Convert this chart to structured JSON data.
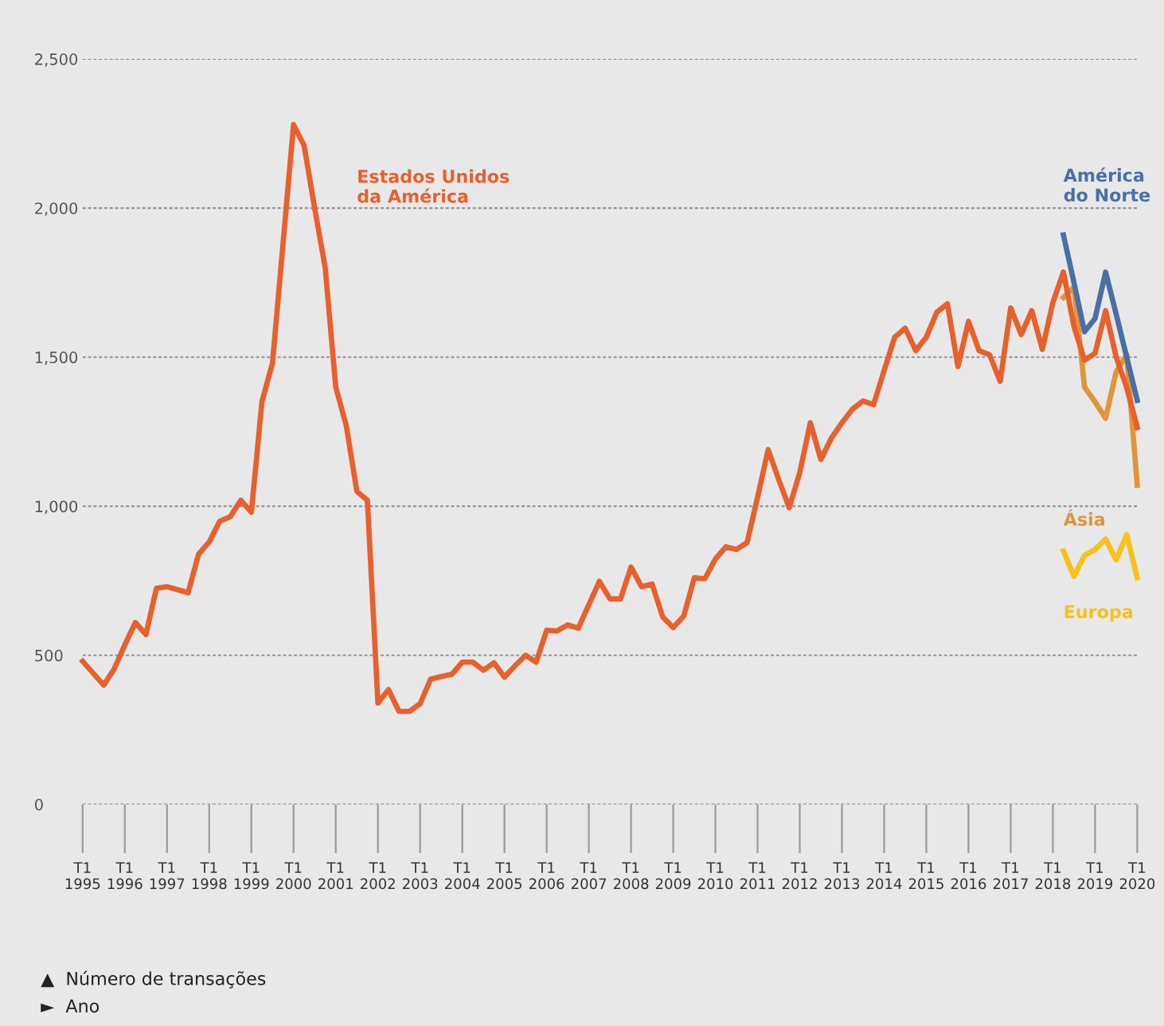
{
  "chart_data": {
    "type": "line",
    "categories": [
      "T1\n1995",
      null,
      null,
      null,
      "T1\n1996",
      null,
      null,
      null,
      "T1\n1997",
      null,
      null,
      null,
      "T1\n1998",
      null,
      null,
      null,
      "T1\n1999",
      null,
      null,
      null,
      "T1\n2000",
      null,
      null,
      null,
      "T1\n2001",
      null,
      null,
      null,
      "T1\n2002",
      null,
      null,
      null,
      "T1\n2003",
      null,
      null,
      null,
      "T1\n2004",
      null,
      null,
      null,
      "T1\n2005",
      null,
      null,
      null,
      "T1\n2006",
      null,
      null,
      null,
      "T1\n2007",
      null,
      null,
      null,
      "T1\n2008",
      null,
      null,
      null,
      "T1\n2009",
      null,
      null,
      null,
      "T1\n2010",
      null,
      null,
      null,
      "T1\n2011",
      null,
      null,
      null,
      "T1\n2012",
      null,
      null,
      null,
      "T1\n2013",
      null,
      null,
      null,
      "T1\n2014",
      null,
      null,
      null,
      "T1\n2015",
      null,
      null,
      null,
      "T1\n2016",
      null,
      null,
      null,
      "T1\n2017",
      null,
      null,
      null,
      "T1\n2018",
      null,
      null,
      null,
      "T1\n2019",
      null,
      null,
      null,
      "T1\n2020"
    ],
    "ylim": [
      0,
      2500
    ],
    "yticks": [
      0,
      500,
      {
        "value": 1000,
        "label": "1,000"
      },
      {
        "value": 1500,
        "label": "1,500"
      },
      {
        "value": 2000,
        "label": "2,000"
      },
      {
        "value": 2500,
        "label": "2,500"
      }
    ],
    "grid": "y",
    "legend": false,
    "marker": "none",
    "line_style": "solid",
    "series": [
      {
        "name": "Estados Unidos\nda América",
        "color": "#e8602c",
        "values": [
          480,
          440,
          400,
          455,
          535,
          610,
          570,
          725,
          730,
          720,
          710,
          840,
          880,
          950,
          965,
          1020,
          980,
          1350,
          1480,
          1880,
          2280,
          2210,
          2000,
          1800,
          1400,
          1270,
          1050,
          1020,
          340,
          385,
          312,
          312,
          338,
          420,
          429,
          436,
          477,
          477,
          450,
          475,
          427,
          465,
          500,
          477,
          584,
          582,
          602,
          591,
          670,
          748,
          689,
          689,
          796,
          730,
          739,
          629,
          593,
          632,
          760,
          757,
          823,
          864,
          855,
          878,
          1030,
          1190,
          1090,
          995,
          1113,
          1280,
          1157,
          1229,
          1280,
          1326,
          1353,
          1341,
          1455,
          1567,
          1597,
          1522,
          1567,
          1651,
          1679,
          1469,
          1620,
          1522,
          1508,
          1419,
          1665,
          1576,
          1656,
          1526,
          1683,
          1786,
          1603,
          1490,
          1513,
          1656,
          1501,
          1398,
          1264
        ]
      },
      {
        "name": "América\ndo Norte",
        "color": "#4a6fa5",
        "values": [
          null,
          null,
          null,
          null,
          null,
          null,
          null,
          null,
          null,
          null,
          null,
          null,
          null,
          null,
          null,
          null,
          null,
          null,
          null,
          null,
          null,
          null,
          null,
          null,
          null,
          null,
          null,
          null,
          null,
          null,
          null,
          null,
          null,
          null,
          null,
          null,
          null,
          null,
          null,
          null,
          null,
          null,
          null,
          null,
          null,
          null,
          null,
          null,
          null,
          null,
          null,
          null,
          null,
          null,
          null,
          null,
          null,
          null,
          null,
          null,
          null,
          null,
          null,
          null,
          null,
          null,
          null,
          null,
          null,
          null,
          null,
          null,
          null,
          null,
          null,
          null,
          null,
          null,
          null,
          null,
          null,
          null,
          null,
          null,
          null,
          null,
          null,
          null,
          null,
          null,
          null,
          null,
          null,
          1910,
          1750,
          1585,
          1630,
          1785,
          1645,
          1500,
          1355
        ]
      },
      {
        "name": "Ásia",
        "color": "#e0953a",
        "values": [
          null,
          null,
          null,
          null,
          null,
          null,
          null,
          null,
          null,
          null,
          null,
          null,
          null,
          null,
          null,
          null,
          null,
          null,
          null,
          null,
          null,
          null,
          null,
          null,
          null,
          null,
          null,
          null,
          null,
          null,
          null,
          null,
          null,
          null,
          null,
          null,
          null,
          null,
          null,
          null,
          null,
          null,
          null,
          null,
          null,
          null,
          null,
          null,
          null,
          null,
          null,
          null,
          null,
          null,
          null,
          null,
          null,
          null,
          null,
          null,
          null,
          null,
          null,
          null,
          null,
          null,
          null,
          null,
          null,
          null,
          null,
          null,
          null,
          null,
          null,
          null,
          null,
          null,
          null,
          null,
          null,
          null,
          null,
          null,
          null,
          null,
          null,
          null,
          null,
          null,
          null,
          null,
          null,
          1700,
          1735,
          1400,
          1350,
          1295,
          1450,
          1510,
          1070
        ]
      },
      {
        "name": "Europa",
        "color": "#f7c21b",
        "values": [
          null,
          null,
          null,
          null,
          null,
          null,
          null,
          null,
          null,
          null,
          null,
          null,
          null,
          null,
          null,
          null,
          null,
          null,
          null,
          null,
          null,
          null,
          null,
          null,
          null,
          null,
          null,
          null,
          null,
          null,
          null,
          null,
          null,
          null,
          null,
          null,
          null,
          null,
          null,
          null,
          null,
          null,
          null,
          null,
          null,
          null,
          null,
          null,
          null,
          null,
          null,
          null,
          null,
          null,
          null,
          null,
          null,
          null,
          null,
          null,
          null,
          null,
          null,
          null,
          null,
          null,
          null,
          null,
          null,
          null,
          null,
          null,
          null,
          null,
          null,
          null,
          null,
          null,
          null,
          null,
          null,
          null,
          null,
          null,
          null,
          null,
          null,
          null,
          null,
          null,
          null,
          null,
          null,
          850,
          765,
          835,
          855,
          890,
          820,
          905,
          760
        ]
      }
    ],
    "annotations": [
      "▲  Número de transações",
      "►  Ano"
    ]
  }
}
